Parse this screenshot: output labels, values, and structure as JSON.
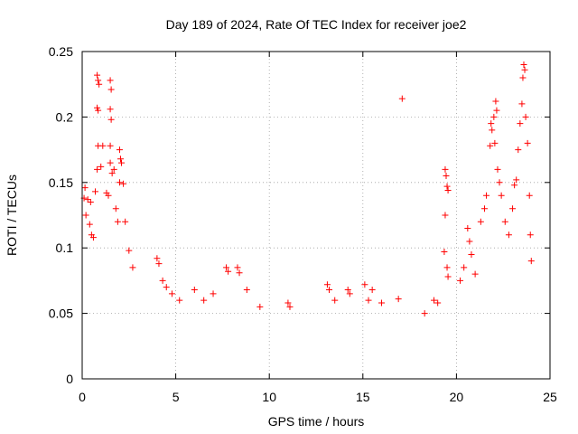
{
  "chart_data": {
    "type": "scatter",
    "title": "Day 189 of 2024, Rate Of TEC Index for receiver joe2",
    "xlabel": "GPS time / hours",
    "ylabel": "ROTI / TECUs",
    "xlim": [
      0,
      25
    ],
    "ylim": [
      0,
      0.25
    ],
    "xticks": [
      "0",
      "5",
      "10",
      "15",
      "20",
      "25"
    ],
    "yticks": [
      "0",
      "0.05",
      "0.1",
      "0.15",
      "0.2",
      "0.25"
    ],
    "grid": true,
    "marker": "+",
    "color": "#ff0000",
    "series": [
      {
        "points": [
          [
            0.1,
            0.138
          ],
          [
            0.15,
            0.146
          ],
          [
            0.2,
            0.125
          ],
          [
            0.3,
            0.137
          ],
          [
            0.4,
            0.118
          ],
          [
            0.45,
            0.135
          ],
          [
            0.5,
            0.11
          ],
          [
            0.6,
            0.108
          ],
          [
            0.7,
            0.143
          ],
          [
            0.8,
            0.16
          ],
          [
            0.85,
            0.178
          ],
          [
            1.0,
            0.162
          ],
          [
            1.1,
            0.178
          ],
          [
            0.8,
            0.232
          ],
          [
            0.85,
            0.228
          ],
          [
            0.9,
            0.225
          ],
          [
            0.8,
            0.207
          ],
          [
            0.85,
            0.205
          ],
          [
            1.5,
            0.228
          ],
          [
            1.55,
            0.221
          ],
          [
            1.5,
            0.206
          ],
          [
            1.55,
            0.198
          ],
          [
            1.5,
            0.178
          ],
          [
            1.5,
            0.165
          ],
          [
            1.3,
            0.142
          ],
          [
            1.4,
            0.14
          ],
          [
            1.6,
            0.157
          ],
          [
            1.7,
            0.16
          ],
          [
            1.8,
            0.13
          ],
          [
            1.9,
            0.12
          ],
          [
            2.0,
            0.175
          ],
          [
            2.05,
            0.168
          ],
          [
            2.1,
            0.165
          ],
          [
            2.0,
            0.15
          ],
          [
            2.2,
            0.149
          ],
          [
            2.3,
            0.12
          ],
          [
            2.5,
            0.098
          ],
          [
            2.7,
            0.085
          ],
          [
            4.0,
            0.092
          ],
          [
            4.1,
            0.088
          ],
          [
            4.3,
            0.075
          ],
          [
            4.5,
            0.07
          ],
          [
            4.8,
            0.065
          ],
          [
            5.2,
            0.06
          ],
          [
            6.0,
            0.068
          ],
          [
            6.5,
            0.06
          ],
          [
            7.0,
            0.065
          ],
          [
            7.7,
            0.085
          ],
          [
            7.8,
            0.082
          ],
          [
            8.3,
            0.085
          ],
          [
            8.4,
            0.081
          ],
          [
            8.8,
            0.068
          ],
          [
            9.5,
            0.055
          ],
          [
            11.0,
            0.058
          ],
          [
            11.1,
            0.055
          ],
          [
            13.1,
            0.072
          ],
          [
            13.2,
            0.068
          ],
          [
            13.5,
            0.06
          ],
          [
            14.2,
            0.068
          ],
          [
            14.3,
            0.065
          ],
          [
            15.1,
            0.072
          ],
          [
            15.3,
            0.06
          ],
          [
            15.5,
            0.068
          ],
          [
            16.0,
            0.058
          ],
          [
            16.9,
            0.061
          ],
          [
            17.1,
            0.214
          ],
          [
            18.3,
            0.05
          ],
          [
            18.8,
            0.06
          ],
          [
            19.0,
            0.058
          ],
          [
            19.4,
            0.16
          ],
          [
            19.45,
            0.155
          ],
          [
            19.5,
            0.147
          ],
          [
            19.55,
            0.144
          ],
          [
            19.4,
            0.125
          ],
          [
            19.35,
            0.097
          ],
          [
            19.5,
            0.085
          ],
          [
            19.55,
            0.078
          ],
          [
            20.2,
            0.075
          ],
          [
            20.4,
            0.085
          ],
          [
            20.6,
            0.115
          ],
          [
            20.7,
            0.105
          ],
          [
            20.8,
            0.095
          ],
          [
            21.0,
            0.08
          ],
          [
            21.3,
            0.12
          ],
          [
            21.5,
            0.13
          ],
          [
            21.6,
            0.14
          ],
          [
            21.8,
            0.178
          ],
          [
            21.85,
            0.195
          ],
          [
            21.9,
            0.19
          ],
          [
            22.0,
            0.2
          ],
          [
            22.05,
            0.18
          ],
          [
            22.1,
            0.212
          ],
          [
            22.15,
            0.205
          ],
          [
            22.2,
            0.16
          ],
          [
            22.3,
            0.15
          ],
          [
            22.4,
            0.14
          ],
          [
            22.6,
            0.12
          ],
          [
            22.8,
            0.11
          ],
          [
            23.0,
            0.13
          ],
          [
            23.1,
            0.148
          ],
          [
            23.2,
            0.152
          ],
          [
            23.3,
            0.175
          ],
          [
            23.4,
            0.195
          ],
          [
            23.5,
            0.21
          ],
          [
            23.55,
            0.23
          ],
          [
            23.6,
            0.24
          ],
          [
            23.65,
            0.236
          ],
          [
            23.7,
            0.2
          ],
          [
            23.8,
            0.18
          ],
          [
            23.9,
            0.14
          ],
          [
            23.95,
            0.11
          ],
          [
            24.0,
            0.09
          ]
        ]
      }
    ]
  }
}
